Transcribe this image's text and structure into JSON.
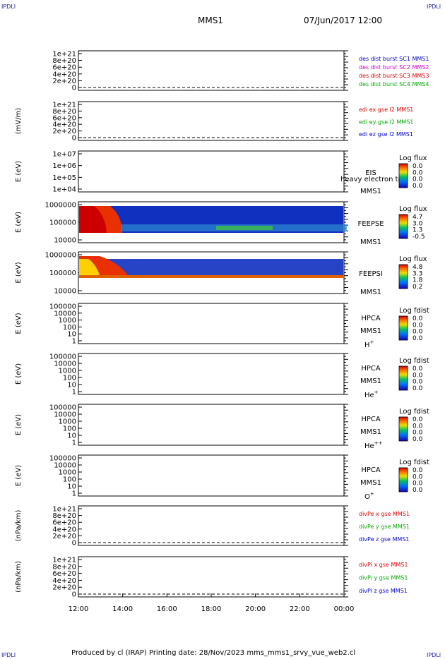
{
  "header": {
    "corner_label": "IPDLI",
    "spacecraft": "MMS1",
    "datetime": "07/Jun/2017 12:00"
  },
  "x_axis": {
    "ticks": [
      "12:00",
      "14:00",
      "16:00",
      "18:00",
      "20:00",
      "22:00",
      "00:00"
    ]
  },
  "footer": {
    "text": "Produced by cl (IRAP)   Printing date: 28/Nov/2023   mms_mms1_srvy_vue_web2.cl"
  },
  "colors": {
    "dist_legend": [
      "#0000cc",
      "#cc00cc",
      "#dd0000",
      "#00aa00"
    ],
    "components": [
      "#dd0000",
      "#00aa00",
      "#0000cc"
    ]
  },
  "chart_data": [
    {
      "type": "line",
      "ylabel": "",
      "yticks": [
        "1e+21",
        "8e+20",
        "6e+20",
        "4e+20",
        "2e+20",
        "0"
      ],
      "series": [
        {
          "name": "des dist burst SC1 MMS1",
          "values": []
        },
        {
          "name": "des dist burst SC2 MMS2",
          "values": []
        },
        {
          "name": "des dist burst SC3 MMS3",
          "values": []
        },
        {
          "name": "des dist burst SC4 MMS4",
          "values": []
        }
      ],
      "zero_line": "dashed"
    },
    {
      "type": "line",
      "ylabel": "(mV/m)",
      "yticks": [
        "1e+21",
        "8e+20",
        "6e+20",
        "4e+20",
        "2e+20",
        "0"
      ],
      "series": [
        {
          "name": "edi ex gse l2 MMS1",
          "values": []
        },
        {
          "name": "edi ey gse l2 MMS1",
          "values": []
        },
        {
          "name": "edi ez gse l2 MMS1",
          "values": []
        }
      ],
      "zero_line": "dashed"
    },
    {
      "type": "heatmap",
      "ylabel": "E (eV)",
      "yticks": [
        "1e+07",
        "1e+06",
        "1e+05",
        "1e+04"
      ],
      "instrument": "EIS",
      "extra_label": "heavy electron to",
      "spacecraft": "MMS1",
      "colorbar_title": "Log flux",
      "colorbar_ticks": [
        "0.0",
        "0.0",
        "0.0",
        "0.0"
      ]
    },
    {
      "type": "heatmap",
      "ylabel": "E (eV)",
      "yticks": [
        "1000000",
        "100000",
        "10000"
      ],
      "instrument": "FEEPSE",
      "spacecraft": "MMS1",
      "colorbar_title": "Log flux",
      "colorbar_ticks": [
        "4.7",
        "3.0",
        "1.3",
        "-0.5"
      ]
    },
    {
      "type": "heatmap",
      "ylabel": "E (eV)",
      "yticks": [
        "1000000",
        "100000",
        "10000"
      ],
      "instrument": "FEEPSI",
      "spacecraft": "MMS1",
      "colorbar_title": "Log flux",
      "colorbar_ticks": [
        "4.8",
        "3.3",
        "1.8",
        "0.2"
      ]
    },
    {
      "type": "heatmap",
      "ylabel": "E (eV)",
      "yticks": [
        "100000",
        "10000",
        "1000",
        "100",
        "10",
        "1"
      ],
      "instrument": "HPCA",
      "spacecraft": "MMS1",
      "species": "H",
      "species_sup": "+",
      "colorbar_title": "Log fdist",
      "colorbar_ticks": [
        "0.0",
        "0.0",
        "0.0",
        "0.0"
      ]
    },
    {
      "type": "heatmap",
      "ylabel": "E (eV)",
      "yticks": [
        "100000",
        "10000",
        "1000",
        "100",
        "10",
        "1"
      ],
      "instrument": "HPCA",
      "spacecraft": "MMS1",
      "species": "He",
      "species_sup": "+",
      "colorbar_title": "Log fdist",
      "colorbar_ticks": [
        "0.0",
        "0.0",
        "0.0",
        "0.0"
      ]
    },
    {
      "type": "heatmap",
      "ylabel": "E (eV)",
      "yticks": [
        "100000",
        "10000",
        "1000",
        "100",
        "10",
        "1"
      ],
      "instrument": "HPCA",
      "spacecraft": "MMS1",
      "species": "He",
      "species_sup": "++",
      "colorbar_title": "Log fdist",
      "colorbar_ticks": [
        "0.0",
        "0.0",
        "0.0",
        "0.0"
      ]
    },
    {
      "type": "heatmap",
      "ylabel": "E (eV)",
      "yticks": [
        "100000",
        "10000",
        "1000",
        "100",
        "10",
        "1"
      ],
      "instrument": "HPCA",
      "spacecraft": "MMS1",
      "species": "O",
      "species_sup": "+",
      "colorbar_title": "Log fdist",
      "colorbar_ticks": [
        "0.0",
        "0.0",
        "0.0",
        "0.0"
      ]
    },
    {
      "type": "line",
      "ylabel": "(nPa/km)",
      "yticks": [
        "1e+21",
        "8e+20",
        "6e+20",
        "4e+20",
        "2e+20",
        "0"
      ],
      "series": [
        {
          "name": "divPe x gse MMS1",
          "values": []
        },
        {
          "name": "divPe y gse MMS1",
          "values": []
        },
        {
          "name": "divPe z gse MMS1",
          "values": []
        }
      ],
      "zero_line": "dashed"
    },
    {
      "type": "line",
      "ylabel": "(nPa/km)",
      "yticks": [
        "1e+21",
        "8e+20",
        "6e+20",
        "4e+20",
        "2e+20",
        "0"
      ],
      "series": [
        {
          "name": "divPi x gse MMS1",
          "values": []
        },
        {
          "name": "divPi y gse MMS1",
          "values": []
        },
        {
          "name": "divPi z gse MMS1",
          "values": []
        }
      ],
      "zero_line": "dashed"
    }
  ]
}
